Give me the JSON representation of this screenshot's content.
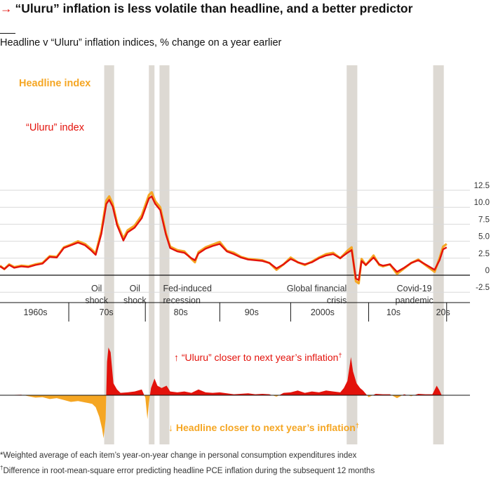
{
  "header": {
    "arrow_glyph": "→",
    "title": "“Uluru” inflation is less volatile than headline, and a better predictor",
    "subtitle": "Headline v “Uluru” inflation indices, % change on a year earlier"
  },
  "colors": {
    "headline": "#f5a623",
    "uluru": "#e3120b",
    "recession_band": "#ddd9d3",
    "axis": "#121212",
    "grid": "#d9d9d9"
  },
  "chart_data": [
    {
      "type": "line",
      "title": "",
      "xlabel": "",
      "ylabel": "",
      "xlim": [
        1959.0,
        2024.3
      ],
      "ylim": [
        -2.5,
        12.5
      ],
      "y_ticks": [
        -2.5,
        0,
        2.5,
        5.0,
        7.5,
        10.0,
        12.5
      ],
      "y_tick_labels": [
        "-2.5",
        "0",
        "2.5",
        "5.0",
        "7.5",
        "10.0",
        "12.5"
      ],
      "decade_labels": [
        {
          "label": "1960s",
          "x": 1964
        },
        {
          "label": "70s",
          "x": 1974
        },
        {
          "label": "80s",
          "x": 1984.5
        },
        {
          "label": "90s",
          "x": 1994.5
        },
        {
          "label": "2000s",
          "x": 2004.5
        },
        {
          "label": "10s",
          "x": 2014.5
        },
        {
          "label": "20s",
          "x": 2021.5
        }
      ],
      "decade_dividers": [
        1968.7,
        1979.5,
        1990,
        2000,
        2011,
        2022
      ],
      "shaded_periods": [
        {
          "start": 1973.7,
          "end": 1975.1,
          "label": "Oil\nshock"
        },
        {
          "start": 1980.0,
          "end": 1980.5,
          "label": "Oil\nshock"
        },
        {
          "start": 1981.5,
          "end": 1982.9,
          "label": "Fed-induced\nrecession"
        },
        {
          "start": 2007.9,
          "end": 2009.4,
          "label": "Global financial\ncrisis"
        },
        {
          "start": 2020.1,
          "end": 2021.6,
          "label": "Covid-19\npandemic"
        }
      ],
      "series": [
        {
          "name": "Headline index",
          "points": [
            [
              1959.0,
              1.4
            ],
            [
              1959.6,
              0.9
            ],
            [
              1960.3,
              1.6
            ],
            [
              1961.0,
              1.2
            ],
            [
              1962.0,
              1.4
            ],
            [
              1963.0,
              1.3
            ],
            [
              1964.0,
              1.6
            ],
            [
              1965.0,
              1.8
            ],
            [
              1966.0,
              2.8
            ],
            [
              1967.0,
              2.7
            ],
            [
              1968.0,
              4.1
            ],
            [
              1969.0,
              4.5
            ],
            [
              1970.0,
              5.0
            ],
            [
              1971.0,
              4.6
            ],
            [
              1971.8,
              3.9
            ],
            [
              1972.5,
              3.2
            ],
            [
              1973.3,
              6.5
            ],
            [
              1974.0,
              11.0
            ],
            [
              1974.4,
              11.6
            ],
            [
              1974.9,
              10.5
            ],
            [
              1975.5,
              7.7
            ],
            [
              1976.4,
              5.4
            ],
            [
              1977.0,
              6.6
            ],
            [
              1978.0,
              7.3
            ],
            [
              1979.0,
              8.8
            ],
            [
              1980.0,
              11.8
            ],
            [
              1980.4,
              12.2
            ],
            [
              1980.9,
              10.9
            ],
            [
              1981.6,
              10.0
            ],
            [
              1982.4,
              6.2
            ],
            [
              1983.0,
              4.2
            ],
            [
              1984.0,
              3.7
            ],
            [
              1985.0,
              3.5
            ],
            [
              1986.0,
              2.4
            ],
            [
              1986.5,
              1.9
            ],
            [
              1987.0,
              3.4
            ],
            [
              1988.0,
              4.1
            ],
            [
              1989.0,
              4.5
            ],
            [
              1990.0,
              4.9
            ],
            [
              1991.0,
              3.6
            ],
            [
              1992.0,
              3.3
            ],
            [
              1993.0,
              2.7
            ],
            [
              1994.0,
              2.4
            ],
            [
              1995.0,
              2.3
            ],
            [
              1996.0,
              2.2
            ],
            [
              1997.0,
              1.8
            ],
            [
              1998.0,
              0.8
            ],
            [
              1999.0,
              1.6
            ],
            [
              2000.0,
              2.6
            ],
            [
              2001.0,
              1.9
            ],
            [
              2002.0,
              1.5
            ],
            [
              2003.0,
              2.0
            ],
            [
              2004.0,
              2.6
            ],
            [
              2005.0,
              3.1
            ],
            [
              2006.0,
              3.3
            ],
            [
              2007.0,
              2.5
            ],
            [
              2008.0,
              3.6
            ],
            [
              2008.6,
              4.1
            ],
            [
              2009.2,
              -0.9
            ],
            [
              2009.6,
              -1.2
            ],
            [
              2010.0,
              2.4
            ],
            [
              2010.6,
              1.5
            ],
            [
              2011.0,
              2.0
            ],
            [
              2011.7,
              2.9
            ],
            [
              2012.5,
              1.5
            ],
            [
              2013.0,
              1.3
            ],
            [
              2014.0,
              1.6
            ],
            [
              2015.0,
              0.2
            ],
            [
              2016.0,
              1.0
            ],
            [
              2017.0,
              1.8
            ],
            [
              2018.0,
              2.3
            ],
            [
              2019.0,
              1.5
            ],
            [
              2020.3,
              0.5
            ],
            [
              2021.0,
              2.5
            ],
            [
              2021.5,
              4.2
            ],
            [
              2022.0,
              4.6
            ]
          ]
        },
        {
          "name": "“Uluru” index",
          "points": [
            [
              1959.0,
              1.3
            ],
            [
              1959.6,
              0.9
            ],
            [
              1960.3,
              1.5
            ],
            [
              1961.0,
              1.1
            ],
            [
              1962.0,
              1.3
            ],
            [
              1963.0,
              1.2
            ],
            [
              1964.0,
              1.5
            ],
            [
              1965.0,
              1.7
            ],
            [
              1966.0,
              2.7
            ],
            [
              1967.0,
              2.6
            ],
            [
              1968.0,
              4.0
            ],
            [
              1969.0,
              4.4
            ],
            [
              1970.0,
              4.8
            ],
            [
              1971.0,
              4.4
            ],
            [
              1971.8,
              3.7
            ],
            [
              1972.5,
              3.0
            ],
            [
              1973.3,
              6.1
            ],
            [
              1974.0,
              10.5
            ],
            [
              1974.4,
              11.1
            ],
            [
              1974.9,
              10.1
            ],
            [
              1975.5,
              7.4
            ],
            [
              1976.4,
              5.1
            ],
            [
              1977.0,
              6.3
            ],
            [
              1978.0,
              7.0
            ],
            [
              1979.0,
              8.4
            ],
            [
              1980.0,
              11.3
            ],
            [
              1980.4,
              11.6
            ],
            [
              1980.9,
              10.5
            ],
            [
              1981.6,
              9.6
            ],
            [
              1982.4,
              6.0
            ],
            [
              1983.0,
              4.0
            ],
            [
              1984.0,
              3.5
            ],
            [
              1985.0,
              3.3
            ],
            [
              1986.0,
              2.5
            ],
            [
              1986.5,
              2.2
            ],
            [
              1987.0,
              3.2
            ],
            [
              1988.0,
              3.9
            ],
            [
              1989.0,
              4.3
            ],
            [
              1990.0,
              4.6
            ],
            [
              1991.0,
              3.5
            ],
            [
              1992.0,
              3.1
            ],
            [
              1993.0,
              2.6
            ],
            [
              1994.0,
              2.3
            ],
            [
              1995.0,
              2.2
            ],
            [
              1996.0,
              2.1
            ],
            [
              1997.0,
              1.8
            ],
            [
              1998.0,
              1.0
            ],
            [
              1999.0,
              1.6
            ],
            [
              2000.0,
              2.4
            ],
            [
              2001.0,
              1.9
            ],
            [
              2002.0,
              1.6
            ],
            [
              2003.0,
              1.9
            ],
            [
              2004.0,
              2.5
            ],
            [
              2005.0,
              2.9
            ],
            [
              2006.0,
              3.1
            ],
            [
              2007.0,
              2.5
            ],
            [
              2008.0,
              3.3
            ],
            [
              2008.6,
              3.7
            ],
            [
              2009.2,
              -0.5
            ],
            [
              2009.6,
              -0.7
            ],
            [
              2010.0,
              2.1
            ],
            [
              2010.6,
              1.5
            ],
            [
              2011.0,
              1.9
            ],
            [
              2011.7,
              2.6
            ],
            [
              2012.5,
              1.6
            ],
            [
              2013.0,
              1.4
            ],
            [
              2014.0,
              1.6
            ],
            [
              2015.0,
              0.5
            ],
            [
              2016.0,
              1.1
            ],
            [
              2017.0,
              1.8
            ],
            [
              2018.0,
              2.2
            ],
            [
              2019.0,
              1.6
            ],
            [
              2020.3,
              0.8
            ],
            [
              2021.0,
              2.2
            ],
            [
              2021.5,
              3.8
            ],
            [
              2022.0,
              4.1
            ]
          ]
        }
      ],
      "series_labels": [
        "Headline index",
        "“Uluru” index"
      ]
    },
    {
      "type": "area",
      "title": "",
      "xlim": [
        1959.0,
        2024.3
      ],
      "ylim": [
        -1.0,
        1.0
      ],
      "annotations": {
        "up": "“Uluru” closer to next year’s inflation",
        "down": "Headline closer to next year’s inflation",
        "up_arrow": "↑",
        "down_arrow": "↓",
        "dagger": "†"
      },
      "series": [
        {
          "name": "Difference in RMSE",
          "points": [
            [
              1959.0,
              0.0
            ],
            [
              1962.0,
              0.01
            ],
            [
              1964.0,
              -0.05
            ],
            [
              1965.0,
              -0.04
            ],
            [
              1966.0,
              -0.08
            ],
            [
              1967.0,
              -0.06
            ],
            [
              1968.0,
              -0.1
            ],
            [
              1969.0,
              -0.14
            ],
            [
              1970.0,
              -0.12
            ],
            [
              1971.0,
              -0.15
            ],
            [
              1972.0,
              -0.18
            ],
            [
              1972.5,
              -0.25
            ],
            [
              1973.0,
              -0.45
            ],
            [
              1973.4,
              -0.7
            ],
            [
              1973.6,
              -0.9
            ],
            [
              1973.9,
              -0.5
            ],
            [
              1974.1,
              0.7
            ],
            [
              1974.3,
              1.0
            ],
            [
              1974.6,
              0.9
            ],
            [
              1975.0,
              0.25
            ],
            [
              1975.5,
              0.12
            ],
            [
              1976.0,
              0.05
            ],
            [
              1977.0,
              0.06
            ],
            [
              1978.0,
              0.08
            ],
            [
              1979.0,
              0.12
            ],
            [
              1979.5,
              -0.05
            ],
            [
              1979.8,
              -0.5
            ],
            [
              1980.0,
              -0.15
            ],
            [
              1980.3,
              0.15
            ],
            [
              1980.8,
              0.35
            ],
            [
              1981.2,
              0.2
            ],
            [
              1981.8,
              0.15
            ],
            [
              1982.5,
              0.2
            ],
            [
              1983.0,
              0.08
            ],
            [
              1984.0,
              0.06
            ],
            [
              1985.0,
              0.08
            ],
            [
              1986.0,
              0.05
            ],
            [
              1987.0,
              0.12
            ],
            [
              1988.0,
              0.06
            ],
            [
              1989.0,
              0.05
            ],
            [
              1990.0,
              0.06
            ],
            [
              1991.0,
              0.04
            ],
            [
              1992.0,
              0.02
            ],
            [
              1994.0,
              0.04
            ],
            [
              1995.0,
              0.02
            ],
            [
              1996.0,
              0.03
            ],
            [
              1997.0,
              0.02
            ],
            [
              1998.0,
              -0.03
            ],
            [
              1999.0,
              0.05
            ],
            [
              2000.0,
              0.06
            ],
            [
              2001.0,
              0.1
            ],
            [
              2002.0,
              0.05
            ],
            [
              2003.0,
              0.08
            ],
            [
              2004.0,
              0.06
            ],
            [
              2005.0,
              0.1
            ],
            [
              2006.0,
              0.08
            ],
            [
              2007.0,
              0.06
            ],
            [
              2007.5,
              0.15
            ],
            [
              2008.0,
              0.3
            ],
            [
              2008.5,
              0.8
            ],
            [
              2008.8,
              0.5
            ],
            [
              2009.3,
              0.25
            ],
            [
              2009.8,
              0.15
            ],
            [
              2010.2,
              0.1
            ],
            [
              2011.0,
              -0.04
            ],
            [
              2012.0,
              0.03
            ],
            [
              2013.0,
              0.02
            ],
            [
              2014.0,
              0.02
            ],
            [
              2015.0,
              -0.06
            ],
            [
              2016.0,
              0.02
            ],
            [
              2017.0,
              -0.02
            ],
            [
              2018.0,
              0.03
            ],
            [
              2019.0,
              0.02
            ],
            [
              2020.0,
              0.02
            ],
            [
              2020.6,
              0.2
            ],
            [
              2021.0,
              0.1
            ],
            [
              2021.3,
              0.0
            ]
          ]
        }
      ]
    }
  ],
  "footnotes": {
    "note1": "*Weighted average of each item’s year-on-year change in personal consumption expenditures index",
    "note2_mark": "†",
    "note2": "Difference in root-mean-square error predicting headline PCE inflation during the subsequent 12 months"
  }
}
